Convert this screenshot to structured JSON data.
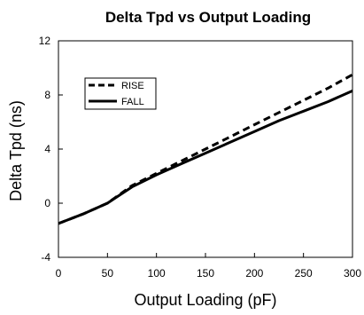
{
  "chart_data": {
    "type": "line",
    "title": "Delta Tpd vs Output Loading",
    "xlabel": "Output Loading (pF)",
    "ylabel": "Delta Tpd (ns)",
    "xlim": [
      0,
      300
    ],
    "ylim": [
      -4,
      12
    ],
    "xticks": [
      0,
      50,
      100,
      150,
      200,
      250,
      300
    ],
    "yticks": [
      -4,
      0,
      4,
      8,
      12
    ],
    "grid": false,
    "legend_position": "top-left",
    "series": [
      {
        "name": "RISE",
        "style": "dashed",
        "color": "#000000",
        "x": [
          0,
          25,
          50,
          75,
          100,
          125,
          150,
          175,
          200,
          225,
          250,
          275,
          300
        ],
        "y": [
          -1.5,
          -0.8,
          0.0,
          1.3,
          2.2,
          3.1,
          4.0,
          4.9,
          5.8,
          6.7,
          7.6,
          8.5,
          9.5
        ]
      },
      {
        "name": "FALL",
        "style": "solid",
        "color": "#000000",
        "x": [
          0,
          25,
          50,
          75,
          100,
          125,
          150,
          175,
          200,
          225,
          250,
          275,
          300
        ],
        "y": [
          -1.5,
          -0.8,
          0.0,
          1.2,
          2.1,
          2.9,
          3.7,
          4.5,
          5.3,
          6.1,
          6.8,
          7.5,
          8.3
        ]
      }
    ]
  }
}
